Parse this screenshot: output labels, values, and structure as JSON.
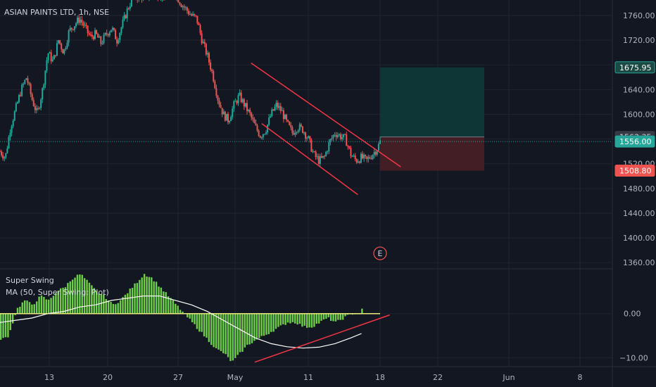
{
  "title": "ASIAN PAINTS LTD, 1h, NSE",
  "colors": {
    "background": "#131722",
    "grid": "#1f2430",
    "bull": "#26a69a",
    "bear": "#ef5350",
    "histogram": "#6fcf4a",
    "histogram_edge": "#a5e86a",
    "ma_line": "#ffffff",
    "trendline": "#f23645",
    "target_zone": "#0f3a3a",
    "stop_zone": "#4a1f26"
  },
  "chart_data": [
    {
      "type": "candlestick",
      "name": "price-pane",
      "y_ticks": [
        "1760.00",
        "1720.00",
        "1680.00",
        "1640.00",
        "1600.00",
        "1560.00",
        "1520.00",
        "1480.00",
        "1440.00",
        "1400.00",
        "1360.00"
      ],
      "ylim": [
        1350,
        1785
      ],
      "x_ticks": [
        "13",
        "20",
        "27",
        "May",
        "11",
        "18",
        "22",
        "Jun",
        "8"
      ],
      "close_path": [
        [
          0,
          1540
        ],
        [
          2,
          1530
        ],
        [
          4,
          1580
        ],
        [
          6,
          1610
        ],
        [
          8,
          1640
        ],
        [
          10,
          1660
        ],
        [
          12,
          1625
        ],
        [
          14,
          1600
        ],
        [
          16,
          1640
        ],
        [
          18,
          1700
        ],
        [
          20,
          1685
        ],
        [
          22,
          1720
        ],
        [
          24,
          1700
        ],
        [
          26,
          1735
        ],
        [
          28,
          1745
        ],
        [
          30,
          1755
        ],
        [
          32,
          1740
        ],
        [
          34,
          1725
        ],
        [
          36,
          1730
        ],
        [
          38,
          1715
        ],
        [
          40,
          1730
        ],
        [
          42,
          1740
        ],
        [
          44,
          1720
        ],
        [
          46,
          1745
        ],
        [
          48,
          1770
        ],
        [
          50,
          1790
        ],
        [
          66,
          1795
        ],
        [
          68,
          1780
        ],
        [
          70,
          1770
        ],
        [
          72,
          1760
        ],
        [
          74,
          1755
        ],
        [
          76,
          1720
        ],
        [
          78,
          1695
        ],
        [
          80,
          1665
        ],
        [
          82,
          1625
        ],
        [
          84,
          1600
        ],
        [
          86,
          1590
        ],
        [
          88,
          1615
        ],
        [
          90,
          1630
        ],
        [
          92,
          1615
        ],
        [
          94,
          1600
        ],
        [
          96,
          1580
        ],
        [
          98,
          1565
        ],
        [
          100,
          1575
        ],
        [
          102,
          1600
        ],
        [
          104,
          1615
        ],
        [
          106,
          1605
        ],
        [
          108,
          1585
        ],
        [
          110,
          1570
        ],
        [
          112,
          1580
        ],
        [
          114,
          1575
        ],
        [
          116,
          1560
        ],
        [
          118,
          1535
        ],
        [
          120,
          1525
        ],
        [
          122,
          1530
        ],
        [
          124,
          1555
        ],
        [
          126,
          1570
        ],
        [
          128,
          1565
        ],
        [
          130,
          1560
        ],
        [
          132,
          1535
        ],
        [
          134,
          1525
        ],
        [
          136,
          1530
        ],
        [
          138,
          1525
        ],
        [
          140,
          1535
        ],
        [
          142,
          1545
        ],
        [
          143,
          1556
        ]
      ],
      "last_price": "1556.00",
      "price_labels": [
        {
          "value": 1675.95,
          "text": "1675.95",
          "style": "target"
        },
        {
          "value": 1563.35,
          "text": "1563.35",
          "style": "entry"
        },
        {
          "value": 1556.0,
          "text": "1556.00",
          "style": "last"
        },
        {
          "value": 1508.8,
          "text": "1508.80",
          "style": "stop"
        }
      ],
      "channel": {
        "upper": [
          [
            86,
            1683
          ],
          [
            146,
            1515
          ]
        ],
        "lower": [
          [
            90,
            1585
          ],
          [
            128,
            1470
          ]
        ]
      },
      "position": {
        "type": "long",
        "entry": 1563.35,
        "target": 1675.95,
        "stop": 1508.8,
        "x_range": [
          136,
          173
        ]
      },
      "event_marker": {
        "label": "E",
        "x": 136,
        "y": 1375
      }
    },
    {
      "type": "histogram+line",
      "name": "indicator-pane",
      "legend": [
        "Super Swing",
        "MA (50, Super Swing: Plot)"
      ],
      "y_ticks": [
        "0.00",
        "-10.00"
      ],
      "ylim": [
        -12,
        10
      ],
      "histogram": [
        [
          0,
          -6
        ],
        [
          3,
          -5
        ],
        [
          6,
          1
        ],
        [
          9,
          3
        ],
        [
          12,
          2
        ],
        [
          15,
          4
        ],
        [
          18,
          3
        ],
        [
          21,
          5
        ],
        [
          24,
          6
        ],
        [
          27,
          8
        ],
        [
          30,
          9
        ],
        [
          33,
          7
        ],
        [
          36,
          5
        ],
        [
          39,
          4
        ],
        [
          42,
          2
        ],
        [
          45,
          3
        ],
        [
          48,
          5
        ],
        [
          51,
          7
        ],
        [
          54,
          9
        ],
        [
          57,
          8
        ],
        [
          60,
          6
        ],
        [
          63,
          4
        ],
        [
          66,
          2
        ],
        [
          69,
          0
        ],
        [
          72,
          -2
        ],
        [
          75,
          -4
        ],
        [
          78,
          -6
        ],
        [
          81,
          -8
        ],
        [
          84,
          -9
        ],
        [
          87,
          -11
        ],
        [
          90,
          -9
        ],
        [
          93,
          -7
        ],
        [
          96,
          -6
        ],
        [
          99,
          -5
        ],
        [
          102,
          -4
        ],
        [
          105,
          -3
        ],
        [
          108,
          -2
        ],
        [
          111,
          -2
        ],
        [
          114,
          -3
        ],
        [
          117,
          -3
        ],
        [
          120,
          -2
        ],
        [
          123,
          -1
        ],
        [
          126,
          -2
        ],
        [
          129,
          -1
        ],
        [
          132,
          0
        ],
        [
          135,
          0
        ],
        [
          136,
          1
        ]
      ],
      "ma_line": [
        [
          0,
          -2
        ],
        [
          6,
          -1.5
        ],
        [
          12,
          -1
        ],
        [
          18,
          0
        ],
        [
          24,
          0.5
        ],
        [
          30,
          1.5
        ],
        [
          36,
          2
        ],
        [
          42,
          3
        ],
        [
          48,
          3.5
        ],
        [
          54,
          4
        ],
        [
          60,
          4
        ],
        [
          66,
          3
        ],
        [
          72,
          2
        ],
        [
          78,
          0.5
        ],
        [
          84,
          -1.5
        ],
        [
          90,
          -3.5
        ],
        [
          96,
          -5.5
        ],
        [
          102,
          -6.8
        ],
        [
          108,
          -7.5
        ],
        [
          114,
          -7.8
        ],
        [
          120,
          -7.6
        ],
        [
          126,
          -6.8
        ],
        [
          132,
          -5.5
        ],
        [
          136,
          -4.5
        ]
      ],
      "trendline": [
        [
          90,
          -11
        ],
        [
          140,
          -0.3
        ]
      ]
    }
  ]
}
